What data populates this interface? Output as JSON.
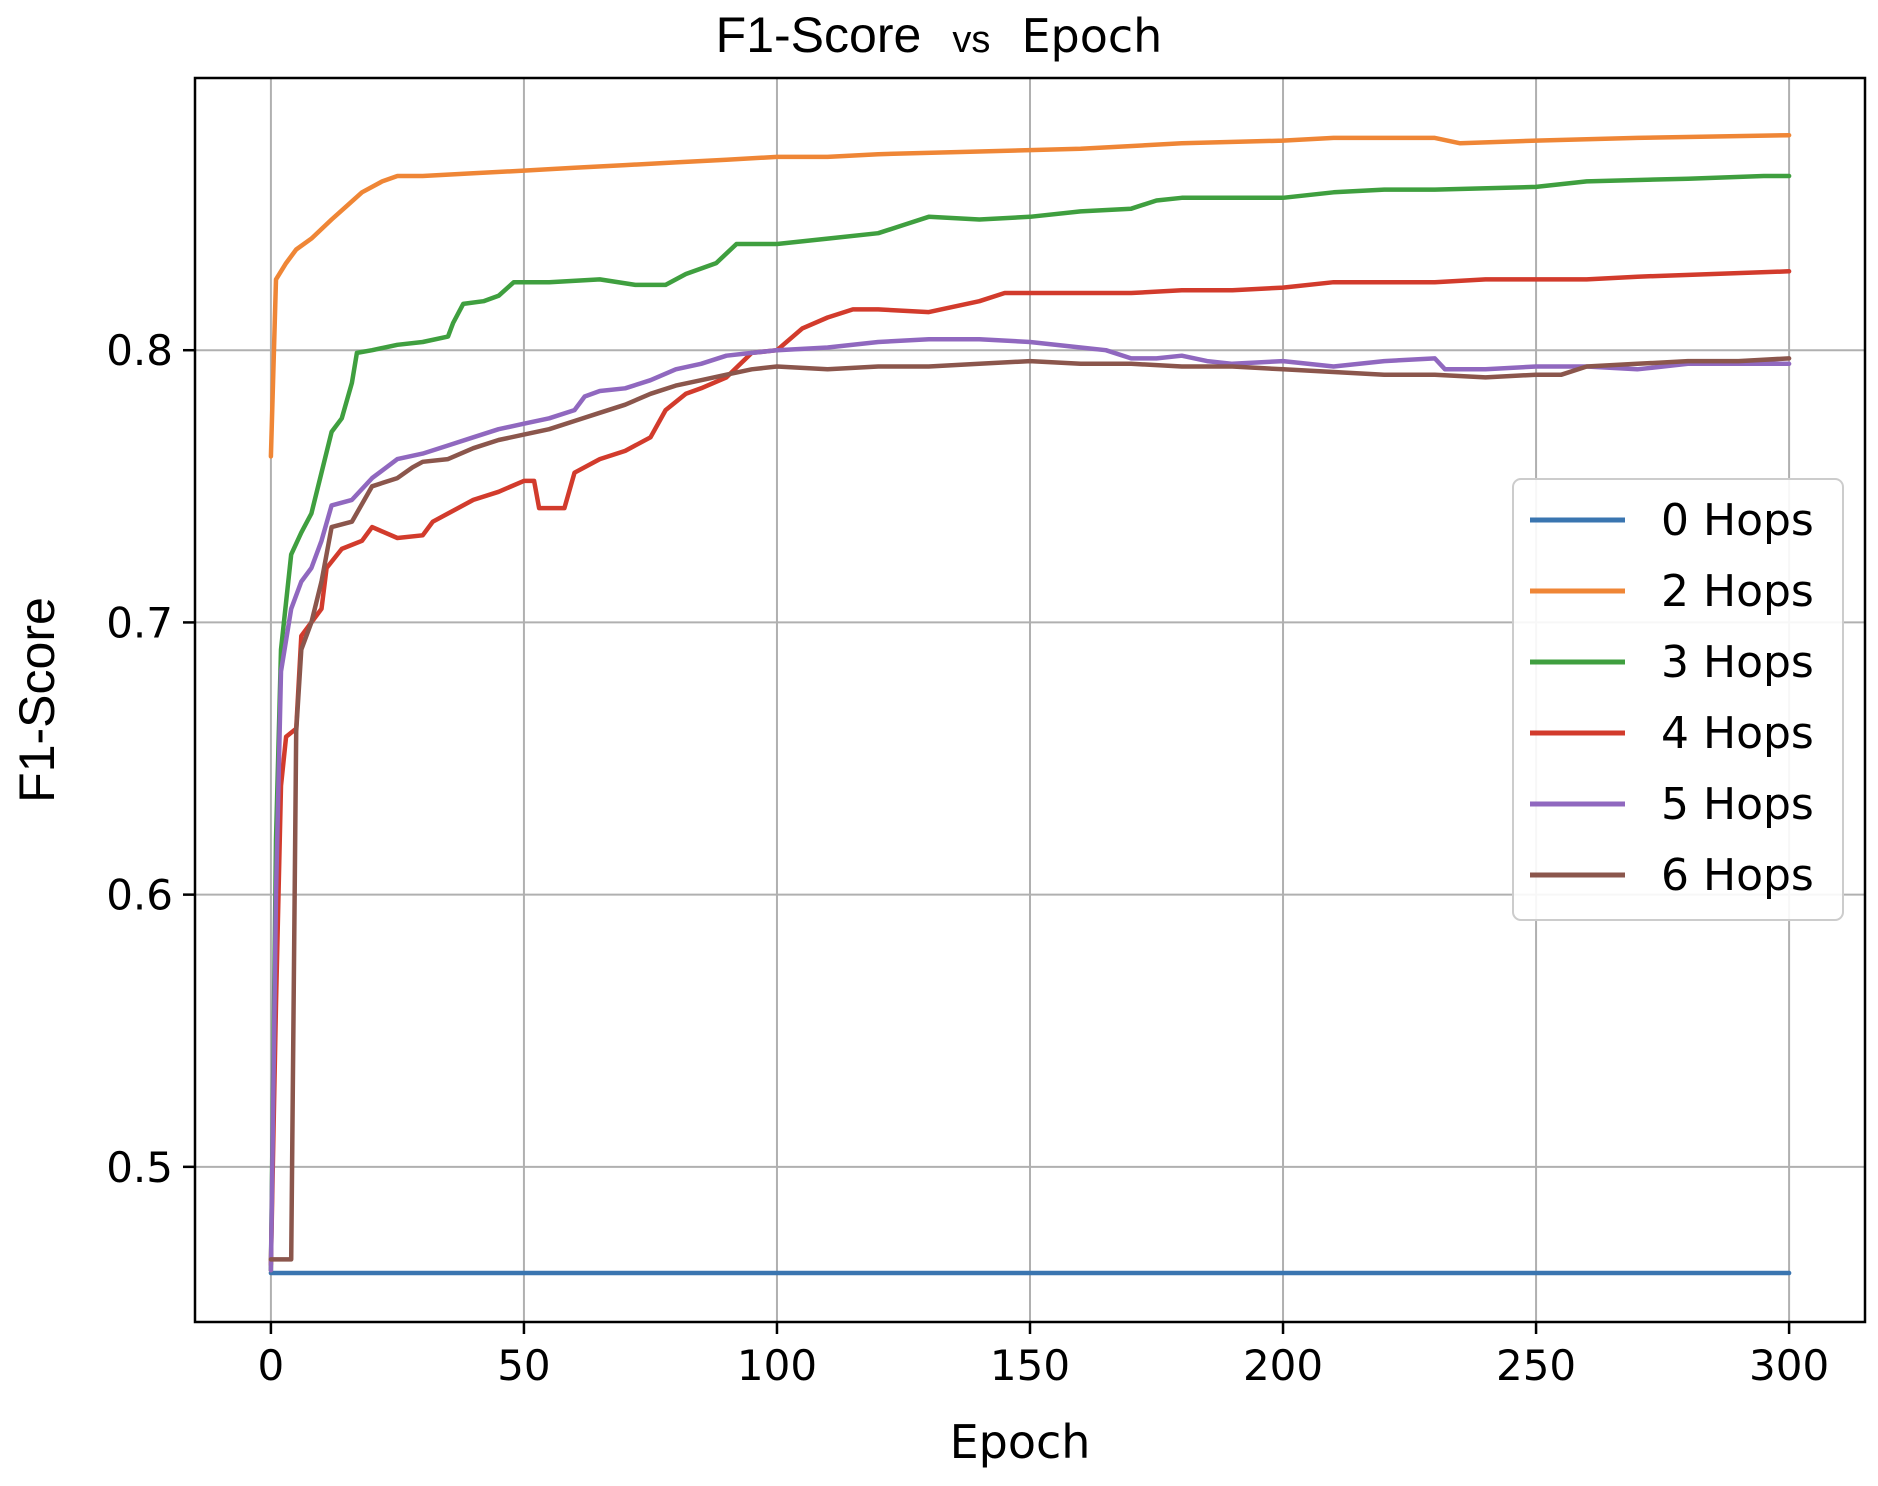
{
  "chart_data": {
    "type": "line",
    "title": {
      "part1": "F1-Score",
      "part2": "vs",
      "part3": "Epoch"
    },
    "xlabel": "Epoch",
    "ylabel": "F1-Score",
    "xlim": [
      -15,
      315
    ],
    "ylim": [
      0.443,
      0.9
    ],
    "xticks": [
      0,
      50,
      100,
      150,
      200,
      250,
      300
    ],
    "xtick_labels": [
      "0",
      "50",
      "100",
      "150",
      "200",
      "250",
      "300"
    ],
    "yticks": [
      0.5,
      0.6,
      0.7,
      0.8
    ],
    "ytick_labels": [
      "0.5",
      "0.6",
      "0.7",
      "0.8"
    ],
    "grid": true,
    "legend_position": "center-right",
    "series": [
      {
        "name": "0 Hops",
        "color": "#3a75b0",
        "points": [
          [
            0,
            0.461
          ],
          [
            300,
            0.461
          ]
        ]
      },
      {
        "name": "2 Hops",
        "color": "#ef8636",
        "points": [
          [
            0,
            0.761
          ],
          [
            1,
            0.826
          ],
          [
            3,
            0.832
          ],
          [
            5,
            0.837
          ],
          [
            8,
            0.841
          ],
          [
            12,
            0.848
          ],
          [
            15,
            0.853
          ],
          [
            18,
            0.858
          ],
          [
            22,
            0.862
          ],
          [
            25,
            0.864
          ],
          [
            30,
            0.864
          ],
          [
            40,
            0.865
          ],
          [
            50,
            0.866
          ],
          [
            60,
            0.867
          ],
          [
            70,
            0.868
          ],
          [
            80,
            0.869
          ],
          [
            90,
            0.87
          ],
          [
            100,
            0.871
          ],
          [
            110,
            0.871
          ],
          [
            120,
            0.872
          ],
          [
            140,
            0.873
          ],
          [
            160,
            0.874
          ],
          [
            180,
            0.876
          ],
          [
            200,
            0.877
          ],
          [
            210,
            0.878
          ],
          [
            230,
            0.878
          ],
          [
            235,
            0.876
          ],
          [
            250,
            0.877
          ],
          [
            270,
            0.878
          ],
          [
            300,
            0.879
          ]
        ]
      },
      {
        "name": "3 Hops",
        "color": "#3f9f3f",
        "points": [
          [
            0,
            0.462
          ],
          [
            1,
            0.62
          ],
          [
            2,
            0.69
          ],
          [
            4,
            0.725
          ],
          [
            6,
            0.733
          ],
          [
            8,
            0.74
          ],
          [
            10,
            0.755
          ],
          [
            12,
            0.77
          ],
          [
            14,
            0.775
          ],
          [
            16,
            0.788
          ],
          [
            17,
            0.799
          ],
          [
            20,
            0.8
          ],
          [
            25,
            0.802
          ],
          [
            30,
            0.803
          ],
          [
            35,
            0.805
          ],
          [
            36,
            0.81
          ],
          [
            38,
            0.817
          ],
          [
            42,
            0.818
          ],
          [
            45,
            0.82
          ],
          [
            48,
            0.825
          ],
          [
            55,
            0.825
          ],
          [
            65,
            0.826
          ],
          [
            72,
            0.824
          ],
          [
            78,
            0.824
          ],
          [
            82,
            0.828
          ],
          [
            88,
            0.832
          ],
          [
            92,
            0.839
          ],
          [
            100,
            0.839
          ],
          [
            110,
            0.841
          ],
          [
            120,
            0.843
          ],
          [
            125,
            0.846
          ],
          [
            130,
            0.849
          ],
          [
            140,
            0.848
          ],
          [
            150,
            0.849
          ],
          [
            160,
            0.851
          ],
          [
            170,
            0.852
          ],
          [
            175,
            0.855
          ],
          [
            180,
            0.856
          ],
          [
            200,
            0.856
          ],
          [
            210,
            0.858
          ],
          [
            220,
            0.859
          ],
          [
            230,
            0.859
          ],
          [
            250,
            0.86
          ],
          [
            260,
            0.862
          ],
          [
            280,
            0.863
          ],
          [
            295,
            0.864
          ],
          [
            300,
            0.864
          ]
        ]
      },
      {
        "name": "4 Hops",
        "color": "#d23b2c",
        "points": [
          [
            0,
            0.464
          ],
          [
            1,
            0.56
          ],
          [
            2,
            0.64
          ],
          [
            3,
            0.658
          ],
          [
            5,
            0.661
          ],
          [
            6,
            0.695
          ],
          [
            8,
            0.7
          ],
          [
            10,
            0.705
          ],
          [
            11,
            0.72
          ],
          [
            14,
            0.727
          ],
          [
            18,
            0.73
          ],
          [
            20,
            0.735
          ],
          [
            25,
            0.731
          ],
          [
            30,
            0.732
          ],
          [
            32,
            0.737
          ],
          [
            35,
            0.74
          ],
          [
            40,
            0.745
          ],
          [
            45,
            0.748
          ],
          [
            50,
            0.752
          ],
          [
            52,
            0.752
          ],
          [
            53,
            0.742
          ],
          [
            58,
            0.742
          ],
          [
            60,
            0.755
          ],
          [
            65,
            0.76
          ],
          [
            70,
            0.763
          ],
          [
            75,
            0.768
          ],
          [
            78,
            0.778
          ],
          [
            82,
            0.784
          ],
          [
            85,
            0.786
          ],
          [
            90,
            0.79
          ],
          [
            95,
            0.799
          ],
          [
            100,
            0.8
          ],
          [
            105,
            0.808
          ],
          [
            110,
            0.812
          ],
          [
            115,
            0.815
          ],
          [
            120,
            0.815
          ],
          [
            130,
            0.814
          ],
          [
            140,
            0.818
          ],
          [
            145,
            0.821
          ],
          [
            150,
            0.821
          ],
          [
            160,
            0.821
          ],
          [
            170,
            0.821
          ],
          [
            180,
            0.822
          ],
          [
            190,
            0.822
          ],
          [
            200,
            0.823
          ],
          [
            210,
            0.825
          ],
          [
            220,
            0.825
          ],
          [
            230,
            0.825
          ],
          [
            240,
            0.826
          ],
          [
            250,
            0.826
          ],
          [
            260,
            0.826
          ],
          [
            270,
            0.827
          ],
          [
            285,
            0.828
          ],
          [
            300,
            0.829
          ]
        ]
      },
      {
        "name": "5 Hops",
        "color": "#9068bf",
        "points": [
          [
            0,
            0.462
          ],
          [
            1,
            0.6
          ],
          [
            2,
            0.682
          ],
          [
            4,
            0.705
          ],
          [
            6,
            0.715
          ],
          [
            8,
            0.72
          ],
          [
            10,
            0.73
          ],
          [
            12,
            0.743
          ],
          [
            16,
            0.745
          ],
          [
            20,
            0.753
          ],
          [
            25,
            0.76
          ],
          [
            30,
            0.762
          ],
          [
            35,
            0.765
          ],
          [
            40,
            0.768
          ],
          [
            45,
            0.771
          ],
          [
            50,
            0.773
          ],
          [
            55,
            0.775
          ],
          [
            60,
            0.778
          ],
          [
            62,
            0.783
          ],
          [
            65,
            0.785
          ],
          [
            70,
            0.786
          ],
          [
            75,
            0.789
          ],
          [
            80,
            0.793
          ],
          [
            85,
            0.795
          ],
          [
            90,
            0.798
          ],
          [
            95,
            0.799
          ],
          [
            100,
            0.8
          ],
          [
            110,
            0.801
          ],
          [
            120,
            0.803
          ],
          [
            130,
            0.804
          ],
          [
            140,
            0.804
          ],
          [
            150,
            0.803
          ],
          [
            160,
            0.801
          ],
          [
            165,
            0.8
          ],
          [
            170,
            0.797
          ],
          [
            175,
            0.797
          ],
          [
            180,
            0.798
          ],
          [
            185,
            0.796
          ],
          [
            190,
            0.795
          ],
          [
            200,
            0.796
          ],
          [
            210,
            0.794
          ],
          [
            220,
            0.796
          ],
          [
            230,
            0.797
          ],
          [
            232,
            0.793
          ],
          [
            240,
            0.793
          ],
          [
            250,
            0.794
          ],
          [
            260,
            0.794
          ],
          [
            270,
            0.793
          ],
          [
            280,
            0.795
          ],
          [
            290,
            0.795
          ],
          [
            300,
            0.795
          ]
        ]
      },
      {
        "name": "6 Hops",
        "color": "#8b564c",
        "points": [
          [
            0,
            0.466
          ],
          [
            4,
            0.466
          ],
          [
            5,
            0.66
          ],
          [
            6,
            0.69
          ],
          [
            8,
            0.7
          ],
          [
            10,
            0.715
          ],
          [
            12,
            0.735
          ],
          [
            16,
            0.737
          ],
          [
            20,
            0.75
          ],
          [
            25,
            0.753
          ],
          [
            28,
            0.757
          ],
          [
            30,
            0.759
          ],
          [
            35,
            0.76
          ],
          [
            40,
            0.764
          ],
          [
            45,
            0.767
          ],
          [
            50,
            0.769
          ],
          [
            55,
            0.771
          ],
          [
            60,
            0.774
          ],
          [
            65,
            0.777
          ],
          [
            70,
            0.78
          ],
          [
            75,
            0.784
          ],
          [
            80,
            0.787
          ],
          [
            85,
            0.789
          ],
          [
            90,
            0.791
          ],
          [
            95,
            0.793
          ],
          [
            100,
            0.794
          ],
          [
            110,
            0.793
          ],
          [
            120,
            0.794
          ],
          [
            130,
            0.794
          ],
          [
            140,
            0.795
          ],
          [
            150,
            0.796
          ],
          [
            160,
            0.795
          ],
          [
            170,
            0.795
          ],
          [
            180,
            0.794
          ],
          [
            190,
            0.794
          ],
          [
            200,
            0.793
          ],
          [
            210,
            0.792
          ],
          [
            220,
            0.791
          ],
          [
            230,
            0.791
          ],
          [
            240,
            0.79
          ],
          [
            250,
            0.791
          ],
          [
            255,
            0.791
          ],
          [
            260,
            0.794
          ],
          [
            270,
            0.795
          ],
          [
            280,
            0.796
          ],
          [
            290,
            0.796
          ],
          [
            300,
            0.797
          ]
        ]
      }
    ]
  }
}
